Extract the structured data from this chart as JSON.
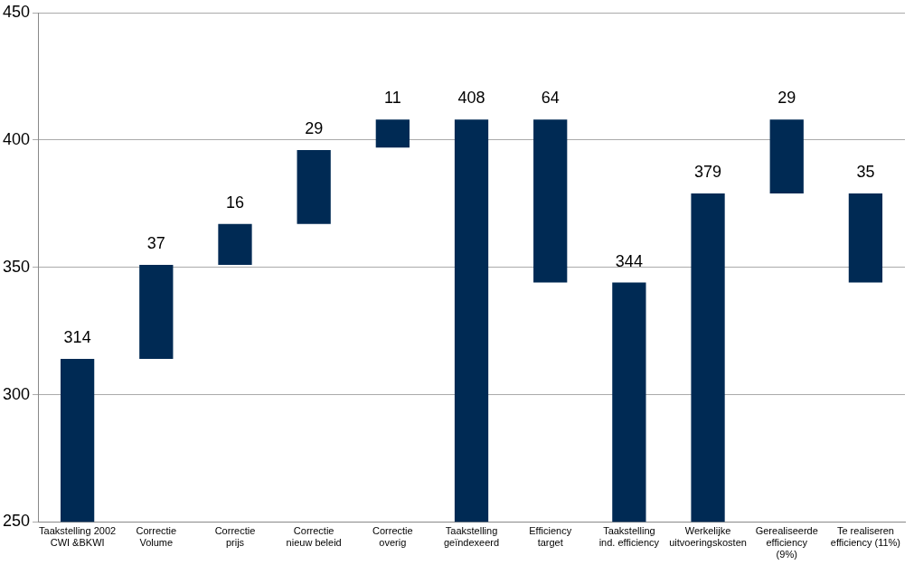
{
  "chart_data": {
    "type": "bar",
    "categories": [
      "Taakstelling 2002\nCWI &BKWI",
      "Correctie\nVolume",
      "Correctie\nprijs",
      "Correctie\nnieuw beleid",
      "Correctie\noverig",
      "Taakstelling\ngeïndexeerd",
      "Efficiency\ntarget",
      "Taakstelling\nind. efficiency",
      "Werkelijke\nuitvoeringskosten",
      "Gerealiseerde\nefficiency\n(9%)",
      "Te realiseren\nefficiency (11%)"
    ],
    "base": [
      250,
      314,
      351,
      367,
      397,
      250,
      344,
      250,
      250,
      379,
      344
    ],
    "values": [
      64,
      37,
      16,
      29,
      11,
      158,
      64,
      94,
      129,
      29,
      35
    ],
    "value_labels": [
      "314",
      "37",
      "16",
      "29",
      "11",
      "408",
      "64",
      "344",
      "379",
      "29",
      "35"
    ],
    "color": "#002a54",
    "ylim": [
      250,
      450
    ],
    "yticks": [
      250,
      300,
      350,
      400,
      450
    ],
    "grid": "y",
    "legend": false
  }
}
